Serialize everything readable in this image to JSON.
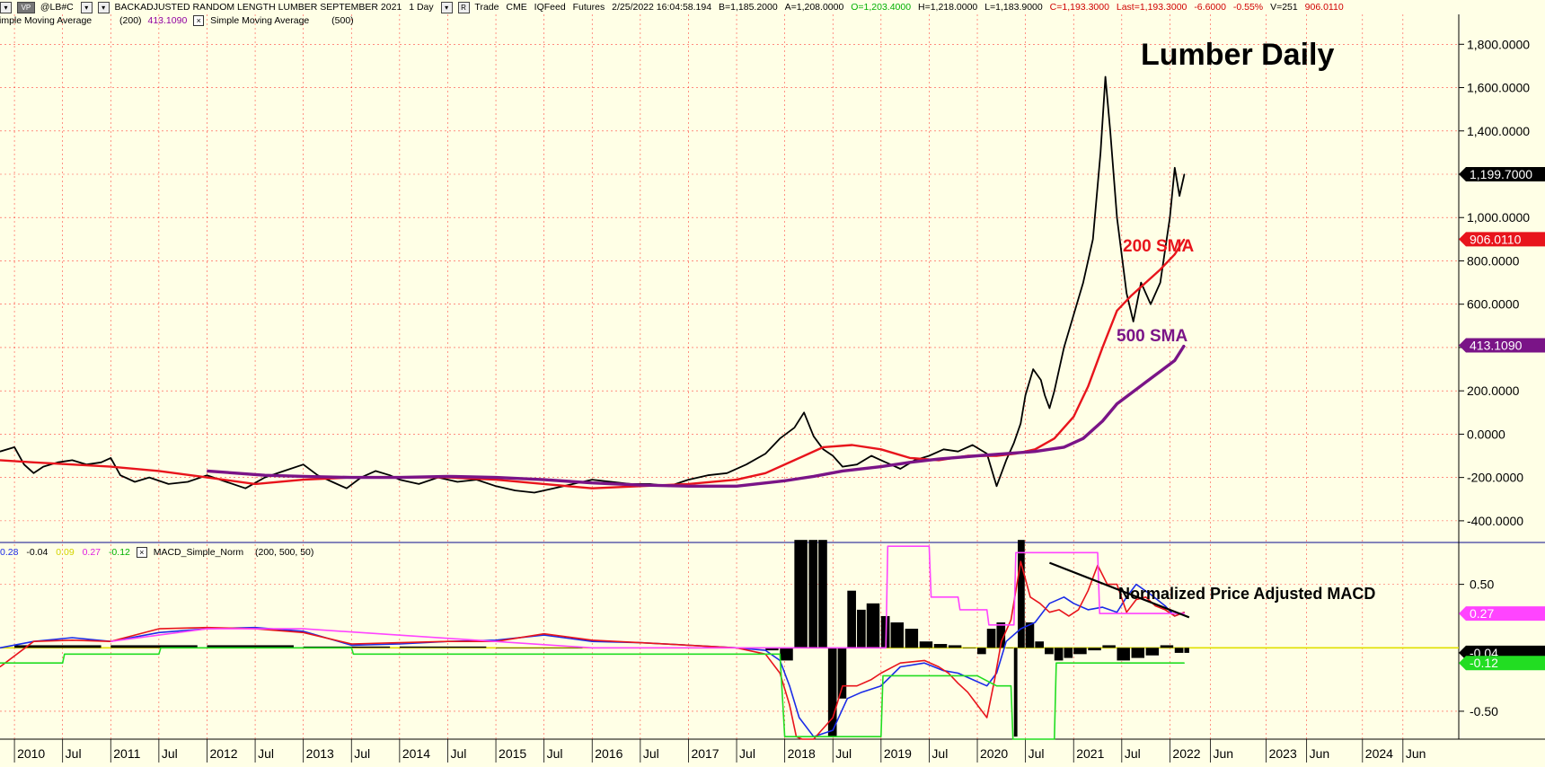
{
  "header": {
    "icon_labels": [
      "VP"
    ],
    "symbol": "@LB#C",
    "contract": "BACKADJUSTED RANDOM LENGTH LUMBER SEPTEMBER 2021",
    "interval": "1 Day",
    "mode": "Trade",
    "exchange": "CME",
    "feed": "IQFeed",
    "category": "Futures",
    "timestamp": "2/25/2022  16:04:58.194",
    "bid": "B=1,185.2000",
    "ask": "A=1,208.0000",
    "open": "O=1,203.4000",
    "high": "H=1,218.0000",
    "low": "L=1,183.9000",
    "close": "C=1,193.3000",
    "last": "Last=1,193.3000",
    "change": "-6.6000",
    "change_pct": "-0.55%",
    "volume": "V=251",
    "extra": "906.0110"
  },
  "indicators_row": {
    "sma1_label": "Simple Moving Average",
    "sma1_params": "(200)",
    "sma1_value": "413.1090",
    "sma2_label": "Simple Moving Average",
    "sma2_params": "(500)"
  },
  "macd_row": {
    "v1": "0.28",
    "v2": "-0.04",
    "v3": "0.09",
    "v4": "0.27",
    "v5": "-0.12",
    "label": "MACD_Simple_Norm",
    "params": "(200,  500,  50)"
  },
  "colors": {
    "background": "#FFFFE6",
    "price": "#000000",
    "sma200": "#E8141C",
    "sma500": "#7A1487",
    "macd_blue": "#1A2BE8",
    "macd_red": "#E8141C",
    "macd_green": "#22DD22",
    "macd_magenta": "#FF44FF",
    "histogram": "#000000",
    "grid": "#FF0000",
    "header_green": "#00B000",
    "header_red": "#D00000",
    "header_purple": "#9000A0"
  },
  "chart_data": [
    {
      "type": "line",
      "title": "Lumber Daily",
      "annotations": [
        "200 SMA",
        "500 SMA"
      ],
      "ylim": [
        -500,
        1880
      ],
      "y_ticks": [
        -400,
        -200,
        0,
        200,
        400,
        600,
        800,
        1000,
        1200,
        1400,
        1600,
        1800
      ],
      "y_tick_labels": [
        "-400.0000",
        "-200.0000",
        "0.0000",
        "200.0000",
        "400.0000",
        "600.0000",
        "800.0000",
        "1,000.0000",
        "1,200.0000",
        "1,400.0000",
        "1,600.0000",
        "1,800.0000"
      ],
      "x_tick_labels": [
        {
          "t": 2010.0,
          "label": "2010"
        },
        {
          "t": 2010.5,
          "label": "Jul"
        },
        {
          "t": 2011.0,
          "label": "2011"
        },
        {
          "t": 2011.5,
          "label": "Jul"
        },
        {
          "t": 2012.0,
          "label": "2012"
        },
        {
          "t": 2012.5,
          "label": "Jul"
        },
        {
          "t": 2013.0,
          "label": "2013"
        },
        {
          "t": 2013.5,
          "label": "Jul"
        },
        {
          "t": 2014.0,
          "label": "2014"
        },
        {
          "t": 2014.5,
          "label": "Jul"
        },
        {
          "t": 2015.0,
          "label": "2015"
        },
        {
          "t": 2015.5,
          "label": "Jul"
        },
        {
          "t": 2016.0,
          "label": "2016"
        },
        {
          "t": 2016.5,
          "label": "Jul"
        },
        {
          "t": 2017.0,
          "label": "2017"
        },
        {
          "t": 2017.5,
          "label": "Jul"
        },
        {
          "t": 2018.0,
          "label": "2018"
        },
        {
          "t": 2018.5,
          "label": "Jul"
        },
        {
          "t": 2019.0,
          "label": "2019"
        },
        {
          "t": 2019.5,
          "label": "Jul"
        },
        {
          "t": 2020.0,
          "label": "2020"
        },
        {
          "t": 2020.5,
          "label": "Jul"
        },
        {
          "t": 2021.0,
          "label": "2021"
        },
        {
          "t": 2021.5,
          "label": "Jul"
        },
        {
          "t": 2022.0,
          "label": "2022"
        },
        {
          "t": 2022.42,
          "label": "Jun"
        },
        {
          "t": 2023.0,
          "label": "2023"
        },
        {
          "t": 2023.42,
          "label": "Jun"
        },
        {
          "t": 2024.0,
          "label": "2024"
        },
        {
          "t": 2024.42,
          "label": "Jun"
        }
      ],
      "series": [
        {
          "name": "Price",
          "x": [
            2009.85,
            2010.0,
            2010.1,
            2010.2,
            2010.3,
            2010.45,
            2010.6,
            2010.75,
            2010.9,
            2011.0,
            2011.1,
            2011.25,
            2011.4,
            2011.6,
            2011.8,
            2012.0,
            2012.2,
            2012.4,
            2012.6,
            2012.8,
            2013.0,
            2013.15,
            2013.3,
            2013.45,
            2013.6,
            2013.75,
            2013.9,
            2014.0,
            2014.2,
            2014.4,
            2014.6,
            2014.8,
            2015.0,
            2015.2,
            2015.4,
            2015.6,
            2015.8,
            2016.0,
            2016.2,
            2016.4,
            2016.6,
            2016.8,
            2017.0,
            2017.2,
            2017.4,
            2017.6,
            2017.8,
            2017.95,
            2018.1,
            2018.2,
            2018.3,
            2018.4,
            2018.5,
            2018.6,
            2018.75,
            2018.9,
            2019.0,
            2019.1,
            2019.2,
            2019.35,
            2019.5,
            2019.65,
            2019.8,
            2019.95,
            2020.1,
            2020.2,
            2020.3,
            2020.38,
            2020.45,
            2020.5,
            2020.58,
            2020.66,
            2020.7,
            2020.75,
            2020.8,
            2020.9,
            2021.0,
            2021.1,
            2021.2,
            2021.28,
            2021.33,
            2021.38,
            2021.45,
            2021.55,
            2021.62,
            2021.7,
            2021.8,
            2021.9,
            2022.0,
            2022.05,
            2022.1,
            2022.15
          ],
          "values": [
            -80,
            -60,
            -140,
            -180,
            -150,
            -130,
            -120,
            -140,
            -130,
            -110,
            -190,
            -220,
            -200,
            -230,
            -220,
            -190,
            -220,
            -250,
            -200,
            -170,
            -140,
            -190,
            -220,
            -250,
            -200,
            -170,
            -190,
            -210,
            -230,
            -200,
            -220,
            -210,
            -240,
            -260,
            -270,
            -250,
            -230,
            -210,
            -220,
            -230,
            -230,
            -240,
            -210,
            -190,
            -180,
            -140,
            -90,
            -20,
            30,
            100,
            -10,
            -70,
            -100,
            -150,
            -140,
            -100,
            -120,
            -140,
            -160,
            -120,
            -100,
            -70,
            -80,
            -50,
            -90,
            -240,
            -120,
            -40,
            50,
            180,
            300,
            250,
            180,
            120,
            200,
            400,
            550,
            700,
            900,
            1300,
            1650,
            1400,
            1000,
            650,
            520,
            700,
            600,
            700,
            1000,
            1230,
            1100,
            1200
          ]
        },
        {
          "name": "200 SMA",
          "x": [
            2009.85,
            2010.2,
            2010.6,
            2011.0,
            2011.5,
            2012.0,
            2012.5,
            2013.0,
            2013.5,
            2014.0,
            2014.5,
            2015.0,
            2015.5,
            2016.0,
            2016.5,
            2017.0,
            2017.5,
            2017.8,
            2018.1,
            2018.4,
            2018.7,
            2019.0,
            2019.3,
            2019.6,
            2019.9,
            2020.2,
            2020.4,
            2020.6,
            2020.8,
            2021.0,
            2021.15,
            2021.3,
            2021.45,
            2021.6,
            2021.75,
            2021.9,
            2022.05,
            2022.15
          ],
          "values": [
            -120,
            -130,
            -140,
            -150,
            -170,
            -200,
            -230,
            -210,
            -200,
            -200,
            -200,
            -210,
            -230,
            -250,
            -240,
            -230,
            -210,
            -180,
            -120,
            -60,
            -50,
            -70,
            -110,
            -120,
            -100,
            -100,
            -90,
            -70,
            -20,
            80,
            220,
            400,
            570,
            640,
            700,
            760,
            830,
            900
          ]
        },
        {
          "name": "500 SMA",
          "x": [
            2012.0,
            2012.3,
            2012.6,
            2013.0,
            2013.5,
            2014.0,
            2014.5,
            2015.0,
            2015.5,
            2016.0,
            2016.5,
            2017.0,
            2017.5,
            2018.0,
            2018.3,
            2018.6,
            2019.0,
            2019.3,
            2019.6,
            2020.0,
            2020.3,
            2020.6,
            2020.9,
            2021.1,
            2021.3,
            2021.45,
            2021.6,
            2021.75,
            2021.9,
            2022.05,
            2022.15
          ],
          "values": [
            -170,
            -180,
            -190,
            -195,
            -200,
            -200,
            -195,
            -200,
            -210,
            -225,
            -235,
            -240,
            -240,
            -215,
            -195,
            -170,
            -150,
            -130,
            -115,
            -100,
            -90,
            -80,
            -60,
            -20,
            60,
            140,
            190,
            240,
            290,
            340,
            410
          ]
        }
      ]
    },
    {
      "type": "line",
      "title": "Normalized Price Adjusted MACD",
      "ylim": [
        -0.72,
        0.83
      ],
      "y_ticks": [
        0.5,
        -0.5
      ],
      "y_tick_labels": [
        "0.50",
        "-0.50"
      ],
      "value_labels": [
        "0.27",
        "-0.04",
        "-0.12"
      ],
      "series": [
        {
          "name": "MACD blue",
          "x": [
            2009.85,
            2010.2,
            2010.6,
            2011.0,
            2011.5,
            2012.0,
            2012.5,
            2013.0,
            2013.5,
            2014.0,
            2014.5,
            2015.0,
            2015.5,
            2016.0,
            2016.5,
            2017.0,
            2017.5,
            2017.8,
            2017.95,
            2018.05,
            2018.15,
            2018.3,
            2018.5,
            2018.65,
            2018.8,
            2019.0,
            2019.2,
            2019.45,
            2019.65,
            2019.8,
            2019.95,
            2020.1,
            2020.2,
            2020.3,
            2020.45,
            2020.6,
            2020.75,
            2020.9,
            2021.0,
            2021.15,
            2021.3,
            2021.45,
            2021.55,
            2021.65,
            2021.8,
            2021.95,
            2022.05,
            2022.15
          ],
          "values": [
            0.0,
            0.05,
            0.08,
            0.05,
            0.12,
            0.15,
            0.16,
            0.13,
            0.02,
            0.03,
            0.05,
            0.06,
            0.1,
            0.05,
            0.04,
            0.02,
            0.0,
            -0.02,
            -0.1,
            -0.3,
            -0.55,
            -0.7,
            -0.65,
            -0.4,
            -0.35,
            -0.3,
            -0.15,
            -0.12,
            -0.18,
            -0.2,
            -0.25,
            -0.3,
            -0.2,
            0.05,
            0.15,
            0.2,
            0.35,
            0.4,
            0.35,
            0.3,
            0.32,
            0.28,
            0.4,
            0.5,
            0.42,
            0.33,
            0.25,
            0.28
          ]
        },
        {
          "name": "MACD red",
          "x": [
            2009.85,
            2010.2,
            2010.6,
            2011.0,
            2011.5,
            2012.0,
            2012.5,
            2013.0,
            2013.5,
            2014.0,
            2014.5,
            2015.0,
            2015.5,
            2016.0,
            2016.5,
            2017.0,
            2017.5,
            2017.8,
            2017.95,
            2018.05,
            2018.12,
            2018.18,
            2018.3,
            2018.5,
            2018.6,
            2018.75,
            2018.9,
            2019.0,
            2019.2,
            2019.45,
            2019.6,
            2019.7,
            2019.8,
            2019.9,
            2020.0,
            2020.1,
            2020.18,
            2020.25,
            2020.35,
            2020.45,
            2020.55,
            2020.65,
            2020.75,
            2020.85,
            2020.95,
            2021.05,
            2021.15,
            2021.25,
            2021.35,
            2021.45,
            2021.55,
            2021.65,
            2021.75,
            2021.85,
            2021.95,
            2022.05,
            2022.15
          ],
          "values": [
            -0.15,
            0.05,
            0.06,
            0.05,
            0.15,
            0.16,
            0.15,
            0.12,
            0.03,
            0.04,
            0.05,
            0.05,
            0.11,
            0.06,
            0.04,
            0.02,
            0.0,
            -0.05,
            -0.2,
            -0.45,
            -0.7,
            -0.72,
            -0.72,
            -0.55,
            -0.3,
            -0.3,
            -0.25,
            -0.2,
            -0.12,
            -0.1,
            -0.15,
            -0.2,
            -0.28,
            -0.35,
            -0.45,
            -0.55,
            -0.25,
            0.05,
            0.22,
            0.68,
            0.4,
            0.35,
            0.28,
            0.3,
            0.25,
            0.3,
            0.45,
            0.65,
            0.5,
            0.5,
            0.28,
            0.38,
            0.4,
            0.33,
            0.3,
            0.25,
            0.28
          ]
        },
        {
          "name": "MACD green",
          "x": [
            2009.85,
            2010.5,
            2010.52,
            2011.5,
            2011.52,
            2013.0,
            2013.5,
            2013.52,
            2016.0,
            2017.95,
            2018.0,
            2018.6,
            2018.75,
            2019.0,
            2019.02,
            2019.5,
            2019.52,
            2020.0,
            2020.2,
            2020.35,
            2020.37,
            2020.8,
            2020.82,
            2022.15
          ],
          "values": [
            -0.12,
            -0.12,
            -0.05,
            -0.05,
            0.0,
            0.0,
            0.0,
            -0.05,
            -0.05,
            -0.05,
            -0.7,
            -0.7,
            -0.7,
            -0.7,
            -0.22,
            -0.22,
            -0.22,
            -0.22,
            -0.3,
            -0.3,
            -0.72,
            -0.72,
            -0.12,
            -0.12
          ]
        },
        {
          "name": "MACD magenta",
          "x": [
            2011.0,
            2012.0,
            2013.0,
            2016.0,
            2018.0,
            2018.3,
            2019.05,
            2019.07,
            2019.5,
            2019.52,
            2019.8,
            2019.82,
            2020.1,
            2020.12,
            2020.38,
            2020.4,
            2021.25,
            2021.27,
            2022.15
          ],
          "values": [
            0.05,
            0.15,
            0.15,
            0.0,
            0.0,
            0.0,
            0.0,
            0.8,
            0.8,
            0.4,
            0.4,
            0.3,
            0.3,
            0.18,
            0.18,
            0.75,
            0.75,
            0.27,
            0.27
          ]
        },
        {
          "name": "Histogram",
          "x": [
            2010.0,
            2011.0,
            2012.0,
            2013.0,
            2014.0,
            2015.0,
            2016.0,
            2017.0,
            2017.5,
            2017.8,
            2017.95,
            2018.1,
            2018.25,
            2018.35,
            2018.45,
            2018.55,
            2018.65,
            2018.75,
            2018.85,
            2019.0,
            2019.1,
            2019.25,
            2019.4,
            2019.55,
            2019.7,
            2019.85,
            2020.0,
            2020.1,
            2020.2,
            2020.3,
            2020.38,
            2020.42,
            2020.5,
            2020.6,
            2020.7,
            2020.8,
            2020.9,
            2021.0,
            2021.15,
            2021.3,
            2021.45,
            2021.6,
            2021.75,
            2021.9,
            2022.05,
            2022.15
          ],
          "values": [
            0.02,
            0.02,
            0.02,
            0.01,
            0.01,
            0.0,
            0.0,
            0.0,
            0.0,
            -0.02,
            -0.1,
            0.85,
            0.85,
            0.85,
            -0.7,
            -0.4,
            0.45,
            0.3,
            0.35,
            0.25,
            0.2,
            0.15,
            0.05,
            0.03,
            0.02,
            0.0,
            -0.05,
            0.15,
            0.2,
            0.0,
            -0.7,
            0.85,
            0.2,
            0.05,
            -0.05,
            -0.1,
            -0.08,
            -0.05,
            -0.02,
            0.02,
            -0.1,
            -0.08,
            -0.06,
            0.02,
            -0.04,
            -0.04
          ]
        }
      ]
    }
  ]
}
